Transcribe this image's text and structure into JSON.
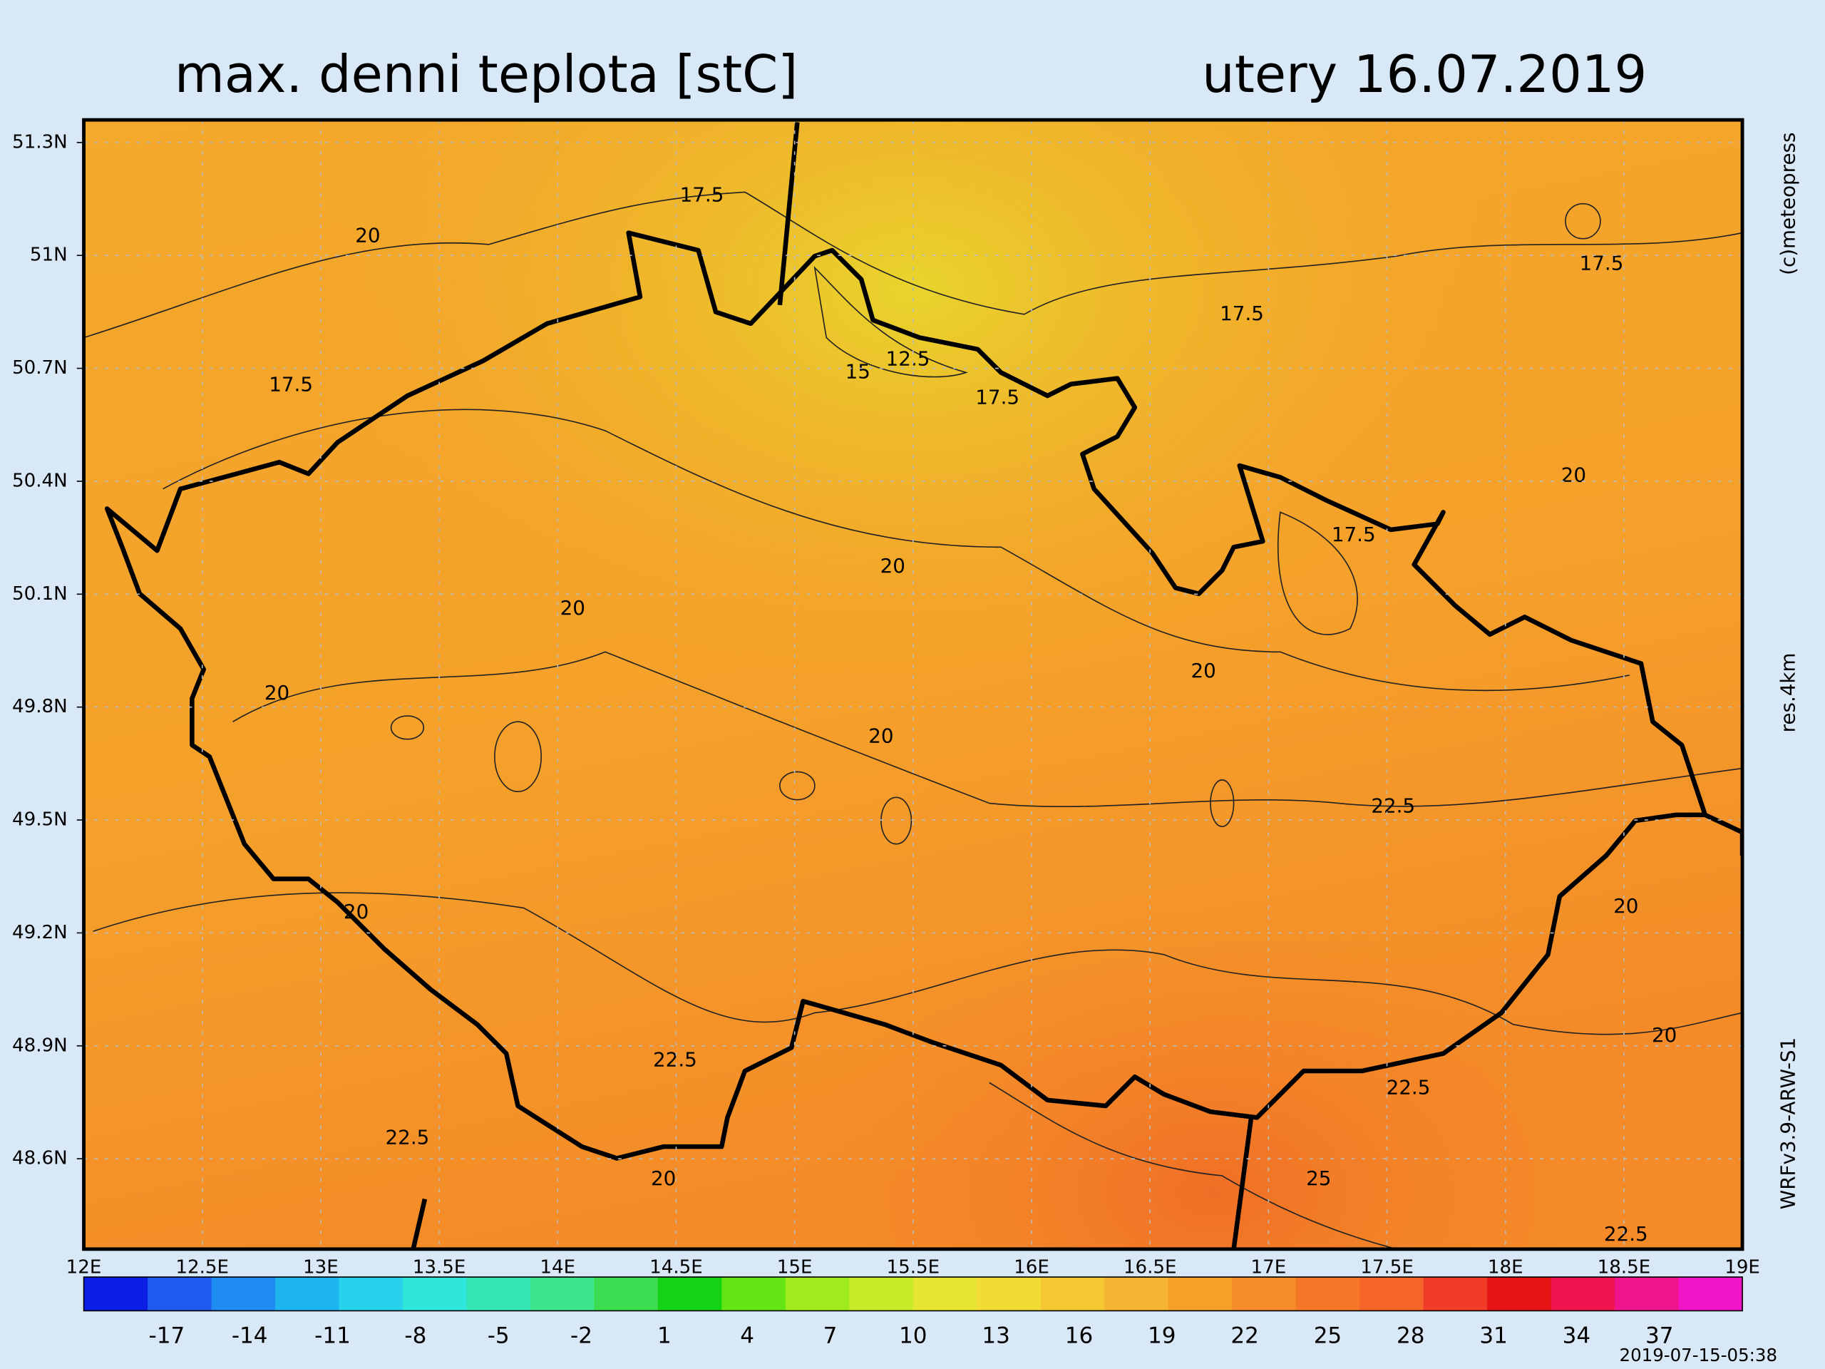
{
  "header": {
    "title": "max. denni teplota [stC]",
    "date": "utery 16.07.2019"
  },
  "side_labels": [
    "(c)meteopress",
    "res.4km",
    "WRFv3.9-ARW-S1"
  ],
  "timestamp": "2019-07-15-05:38",
  "map": {
    "lonlim": [
      12,
      19
    ],
    "latlim": [
      48.36,
      51.36
    ],
    "lon_ticks": [
      {
        "value": 12,
        "label": "12E"
      },
      {
        "value": 12.5,
        "label": "12.5E"
      },
      {
        "value": 13,
        "label": "13E"
      },
      {
        "value": 13.5,
        "label": "13.5E"
      },
      {
        "value": 14,
        "label": "14E"
      },
      {
        "value": 14.5,
        "label": "14.5E"
      },
      {
        "value": 15,
        "label": "15E"
      },
      {
        "value": 15.5,
        "label": "15.5E"
      },
      {
        "value": 16,
        "label": "16E"
      },
      {
        "value": 16.5,
        "label": "16.5E"
      },
      {
        "value": 17,
        "label": "17E"
      },
      {
        "value": 17.5,
        "label": "17.5E"
      },
      {
        "value": 18,
        "label": "18E"
      },
      {
        "value": 18.5,
        "label": "18.5E"
      },
      {
        "value": 19,
        "label": "19E"
      }
    ],
    "lat_ticks": [
      {
        "value": 51.3,
        "label": "51.3N"
      },
      {
        "value": 51,
        "label": "51N"
      },
      {
        "value": 50.7,
        "label": "50.7N"
      },
      {
        "value": 50.4,
        "label": "50.4N"
      },
      {
        "value": 50.1,
        "label": "50.1N"
      },
      {
        "value": 49.8,
        "label": "49.8N"
      },
      {
        "value": 49.5,
        "label": "49.5N"
      },
      {
        "value": 49.2,
        "label": "49.2N"
      },
      {
        "value": 48.9,
        "label": "48.9N"
      },
      {
        "value": 48.6,
        "label": "48.6N"
      }
    ],
    "contour_labels": [
      "17.5",
      "20",
      "17.5",
      "12.5",
      "15",
      "17.5",
      "17.5",
      "17.5",
      "20",
      "17.5",
      "20",
      "20",
      "20",
      "20",
      "20",
      "22.5",
      "20",
      "20",
      "20",
      "22.5",
      "22.5",
      "22.5",
      "20",
      "25",
      "22.5"
    ]
  },
  "colorbar": {
    "lim": [
      -20,
      40
    ],
    "ticks": [
      -17,
      -14,
      -11,
      -8,
      -5,
      -2,
      1,
      4,
      7,
      10,
      13,
      16,
      19,
      22,
      25,
      28,
      31,
      34,
      37
    ],
    "colors": [
      "#0a1ee6",
      "#1e5af0",
      "#1e8cf0",
      "#1eb4f0",
      "#28d2ec",
      "#2ee6dc",
      "#32e6b4",
      "#3ce68c",
      "#3cdc50",
      "#14d214",
      "#64e614",
      "#a0eb1e",
      "#c8eb28",
      "#e6e632",
      "#f0dc32",
      "#f5c832",
      "#f5b432",
      "#f5a028",
      "#f58c28",
      "#f57828",
      "#f56428",
      "#f03c28",
      "#e61414",
      "#f01450",
      "#f0148c",
      "#f014c8"
    ]
  }
}
